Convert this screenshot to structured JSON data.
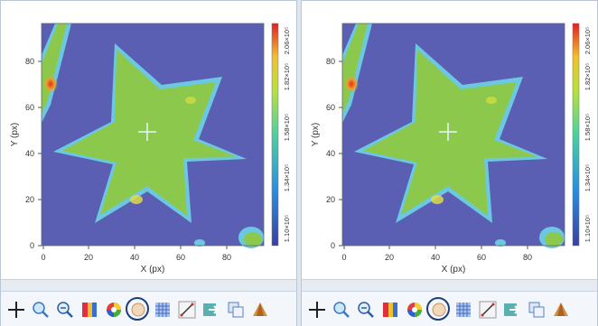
{
  "panels": [
    {
      "id": "left",
      "plot": {
        "xlabel": "X (px)",
        "ylabel": "Y (px)",
        "xticks": [
          "0",
          "20",
          "40",
          "60",
          "80"
        ],
        "yticks": [
          "0",
          "20",
          "40",
          "60",
          "80"
        ],
        "colorbar_ticks": [
          "1.10×10⁵",
          "1.34×10⁵",
          "1.58×10⁵",
          "1.82×10⁵",
          "2.06×10⁵"
        ]
      }
    },
    {
      "id": "right",
      "plot": {
        "xlabel": "X (px)",
        "ylabel": "Y (px)",
        "xticks": [
          "0",
          "20",
          "40",
          "60",
          "80"
        ],
        "yticks": [
          "0",
          "20",
          "40",
          "60",
          "80"
        ],
        "colorbar_ticks": [
          "1.10×10⁵",
          "1.34×10⁵",
          "1.58×10⁵",
          "1.82×10⁵",
          "2.06×10⁵"
        ]
      }
    }
  ],
  "colors": {
    "background_field": "#5b5fb4",
    "star_fill": "#8cc84b",
    "star_edge": "#6cc8e0",
    "hot_spot": "#e03020",
    "warm_spot": "#e8e040"
  },
  "toolbar": [
    {
      "name": "crosshair-icon",
      "active": false
    },
    {
      "name": "zoom-in-icon",
      "active": false
    },
    {
      "name": "zoom-out-icon",
      "active": false
    },
    {
      "name": "colormap-icon",
      "active": false
    },
    {
      "name": "color-wheel-icon",
      "active": false
    },
    {
      "name": "circle-region-icon",
      "active": true
    },
    {
      "name": "grid-pattern-icon",
      "active": false
    },
    {
      "name": "line-profile-icon",
      "active": false
    },
    {
      "name": "export-icon",
      "active": false
    },
    {
      "name": "window-layers-icon",
      "active": false
    },
    {
      "name": "surface-3d-icon",
      "active": false
    }
  ]
}
